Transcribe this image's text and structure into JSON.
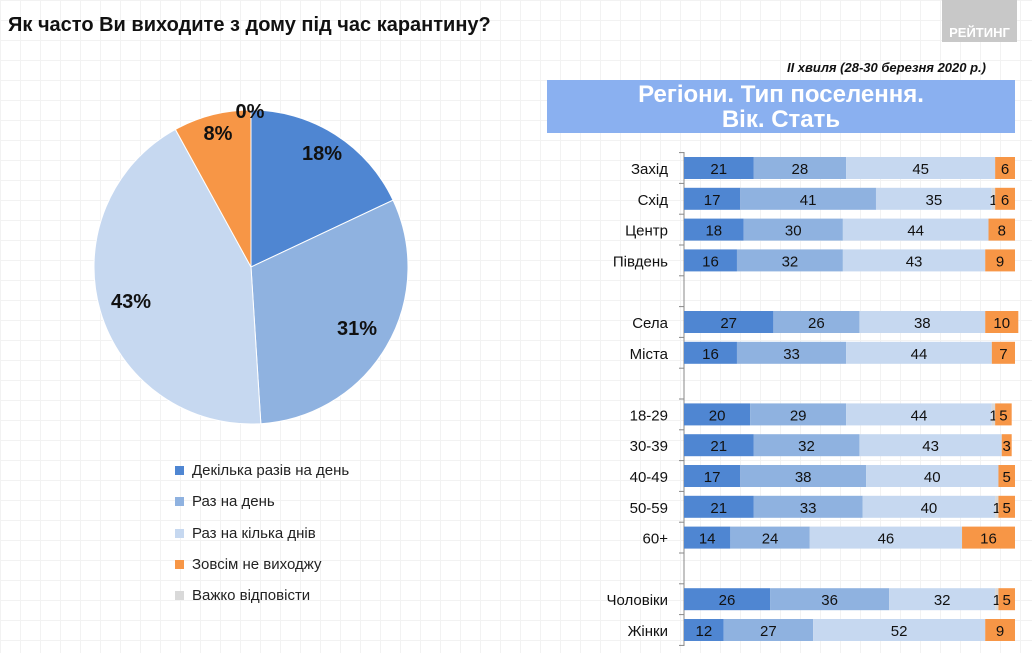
{
  "title": "Як часто Ви виходите з дому під час карантину?",
  "logo": "РЕЙТИНГ",
  "wave": "II хвиля (28-30 березня 2020 р.)",
  "banner": [
    "Регіони. Тип поселення.",
    "Вік. Стать"
  ],
  "colors": {
    "dark": "#4f86d2",
    "mid": "#8fb2e0",
    "light": "#c6d8f0",
    "gray": "#d9d9d9",
    "orange": "#f79646"
  },
  "chart_data": [
    {
      "type": "pie",
      "unit": "%",
      "categories": [
        "Декілька разів на день",
        "Раз на день",
        "Раз на кілька днів",
        "Зовсім не виходжу",
        "Важко відповісти"
      ],
      "values": [
        18,
        31,
        43,
        8,
        0
      ],
      "labels": [
        "18%",
        "31%",
        "43%",
        "8%",
        "0%"
      ],
      "legend_placement": "bottom"
    },
    {
      "type": "bar",
      "orientation": "horizontal",
      "stacked": true,
      "categories": [
        "Захід",
        "Схід",
        "Центр",
        "Південь",
        "",
        "Села",
        "Міста",
        "",
        "18-29",
        "30-39",
        "40-49",
        "50-59",
        "60+",
        "",
        "Чоловіки",
        "Жінки"
      ],
      "series": [
        {
          "name": "Декілька разів на день",
          "values": [
            21,
            17,
            18,
            16,
            null,
            27,
            16,
            null,
            20,
            21,
            17,
            21,
            14,
            null,
            26,
            12
          ]
        },
        {
          "name": "Раз на день",
          "values": [
            28,
            41,
            30,
            32,
            null,
            26,
            33,
            null,
            29,
            32,
            38,
            33,
            24,
            null,
            36,
            27
          ]
        },
        {
          "name": "Раз на кілька днів",
          "values": [
            45,
            35,
            44,
            43,
            null,
            38,
            44,
            null,
            44,
            43,
            40,
            40,
            46,
            null,
            32,
            52
          ]
        },
        {
          "name": "Важко відповісти",
          "values": [
            0,
            1,
            0,
            0,
            null,
            0,
            0,
            null,
            1,
            0,
            0,
            1,
            0,
            null,
            1,
            0
          ]
        },
        {
          "name": "Зовсім не виходжу",
          "values": [
            6,
            6,
            8,
            9,
            null,
            10,
            7,
            null,
            5,
            3,
            5,
            5,
            16,
            null,
            5,
            9
          ]
        }
      ],
      "xlim": [
        0,
        100
      ],
      "grid": false
    }
  ]
}
